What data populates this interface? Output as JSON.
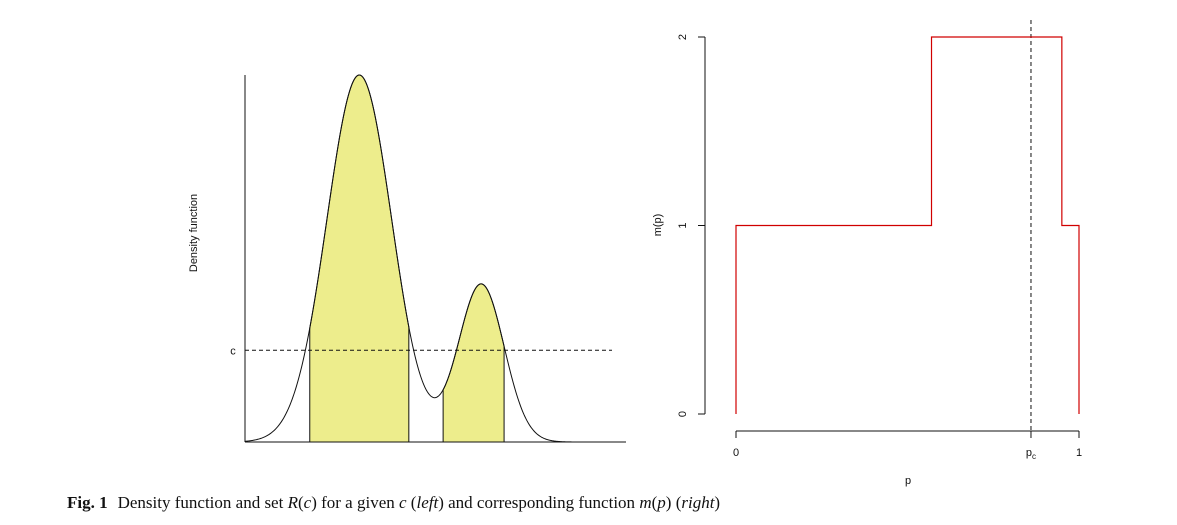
{
  "chart_data": [
    {
      "type": "area",
      "ylabel": "Density function",
      "level_label": "c",
      "level": 0.25,
      "ylim": [
        0,
        1
      ],
      "peaks": [
        {
          "center": 0.3,
          "height": 1.0
        },
        {
          "center": 0.62,
          "height": 0.43
        }
      ],
      "dip_value": 0.17,
      "region_color": "#eded8c",
      "shaded_regions_x": [
        [
          0.17,
          0.43
        ],
        [
          0.52,
          0.68
        ]
      ]
    },
    {
      "type": "line",
      "xlabel": "p",
      "ylabel": "m(p)",
      "x_ticks": [
        "0",
        "p_c",
        "1"
      ],
      "y_ticks": [
        "0",
        "1",
        "2"
      ],
      "ylim": [
        0,
        2
      ],
      "xlim": [
        0,
        1
      ],
      "step_points": [
        {
          "x": 0.0,
          "y": 0
        },
        {
          "x": 0.0,
          "y": 1
        },
        {
          "x": 0.57,
          "y": 1
        },
        {
          "x": 0.57,
          "y": 2
        },
        {
          "x": 0.95,
          "y": 2
        },
        {
          "x": 0.95,
          "y": 1
        },
        {
          "x": 1.0,
          "y": 1
        },
        {
          "x": 1.0,
          "y": 0
        }
      ],
      "p_c": 0.86,
      "line_color": "#d00000"
    }
  ],
  "caption": {
    "label": "Fig. 1",
    "text_1": "Density function and set ",
    "math_R": "R",
    "paren_c_open": "(",
    "math_c": "c",
    "paren_c_close": ")",
    "text_2": " for a given ",
    "math_c2": "c",
    "text_3": " (",
    "left": "left",
    "text_4": ") and corresponding function ",
    "math_m": "m",
    "paren_p_open": "(",
    "math_p": "p",
    "paren_p_close": ")",
    "text_5": " (",
    "right": "right",
    "text_6": ")"
  }
}
